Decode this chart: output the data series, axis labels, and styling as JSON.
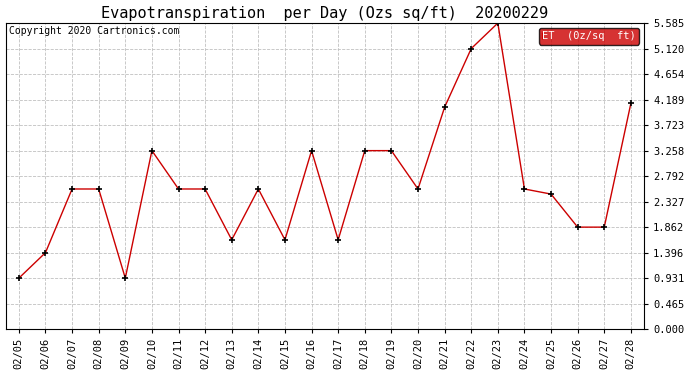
{
  "title": "Evapotranspiration  per Day (Ozs sq/ft)  20200229",
  "copyright": "Copyright 2020 Cartronics.com",
  "legend_label": "ET  (0z/sq  ft)",
  "dates": [
    "02/05",
    "02/06",
    "02/07",
    "02/08",
    "02/09",
    "02/10",
    "02/11",
    "02/12",
    "02/13",
    "02/14",
    "02/15",
    "02/16",
    "02/17",
    "02/18",
    "02/19",
    "02/20",
    "02/21",
    "02/22",
    "02/23",
    "02/24",
    "02/25",
    "02/26",
    "02/27",
    "02/28"
  ],
  "values": [
    0.931,
    1.396,
    2.558,
    2.558,
    0.931,
    3.258,
    2.558,
    2.558,
    1.63,
    2.558,
    1.63,
    3.258,
    1.63,
    3.258,
    3.258,
    2.558,
    4.05,
    5.12,
    5.585,
    2.558,
    2.465,
    1.862,
    1.862,
    4.12
  ],
  "ylim": [
    0.0,
    5.585
  ],
  "yticks": [
    0.0,
    0.465,
    0.931,
    1.396,
    1.862,
    2.327,
    2.792,
    3.258,
    3.723,
    4.189,
    4.654,
    5.12,
    5.585
  ],
  "line_color": "#cc0000",
  "marker_color": "#000000",
  "background_color": "#ffffff",
  "grid_color": "#c0c0c0",
  "legend_bg": "#cc0000",
  "legend_text_color": "#ffffff",
  "title_fontsize": 11,
  "copyright_fontsize": 7,
  "tick_fontsize": 7.5,
  "figsize": [
    6.9,
    3.75
  ],
  "dpi": 100
}
